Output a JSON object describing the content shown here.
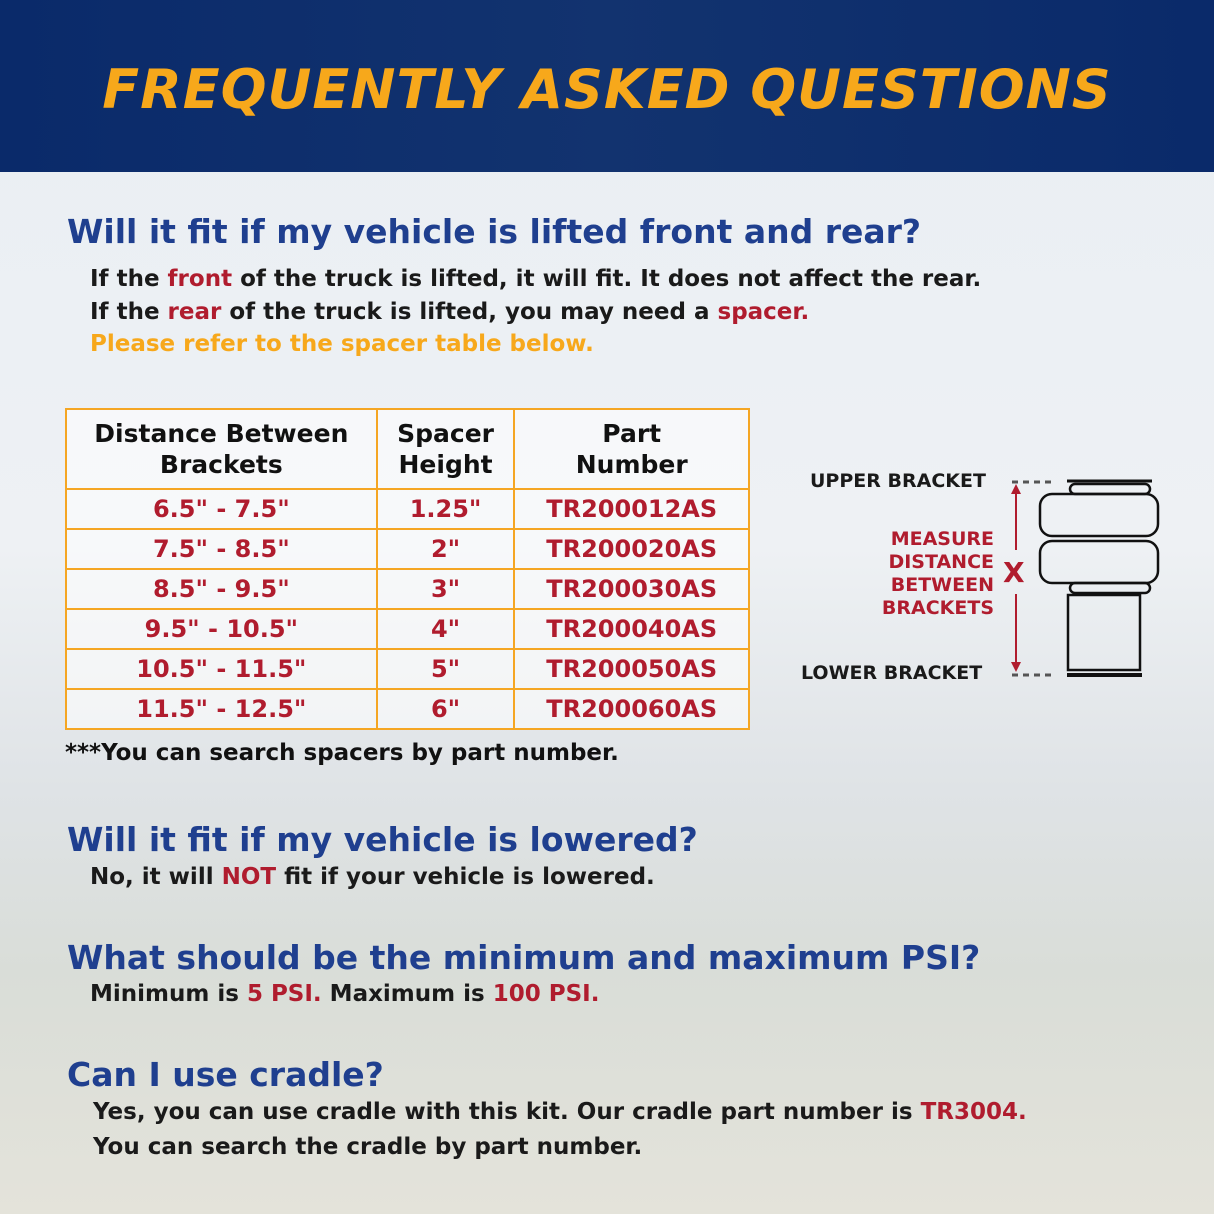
{
  "header": {
    "title": "FREQUENTLY ASKED QUESTIONS"
  },
  "faq1": {
    "question": "Will it fit if my vehicle is lifted front and rear?",
    "line1": {
      "a": "If the ",
      "b": "front",
      "c": " of the truck is lifted, it will fit. It does not affect the rear."
    },
    "line2": {
      "a": "If the ",
      "b": "rear",
      "c": " of the truck is lifted, you may need a ",
      "d": "spacer."
    },
    "line3": "Please refer to the spacer table below."
  },
  "table": {
    "headers": [
      [
        "Distance Between",
        "Brackets"
      ],
      [
        "Spacer",
        "Height"
      ],
      [
        "Part",
        "Number"
      ]
    ],
    "rows": [
      [
        "6.5\" - 7.5\"",
        "1.25\"",
        "TR200012AS"
      ],
      [
        "7.5\" - 8.5\"",
        "2\"",
        "TR200020AS"
      ],
      [
        "8.5\" - 9.5\"",
        "3\"",
        "TR200030AS"
      ],
      [
        "9.5\" - 10.5\"",
        "4\"",
        "TR200040AS"
      ],
      [
        "10.5\" - 11.5\"",
        "5\"",
        "TR200050AS"
      ],
      [
        "11.5\" - 12.5\"",
        "6\"",
        "TR200060AS"
      ]
    ],
    "note": "***You can search spacers by part number."
  },
  "diagram": {
    "upper": "UPPER BRACKET",
    "lower": "LOWER BRACKET",
    "measure": [
      "MEASURE",
      "DISTANCE",
      "BETWEEN",
      "BRACKETS"
    ],
    "x": "X"
  },
  "faq2": {
    "question": "Will it fit if my vehicle is lowered?",
    "a": "No, it will ",
    "b": "NOT",
    "c": " fit if your vehicle is lowered."
  },
  "faq3": {
    "question": "What should be the minimum and maximum PSI?",
    "a": "Minimum is ",
    "b": "5 PSI.",
    "c": " Maximum is ",
    "d": "100 PSI."
  },
  "faq4": {
    "question": "Can I use cradle?",
    "a": "Yes, you can use cradle with this kit. Our cradle part number is ",
    "b": "TR3004.",
    "line2": "You can search the cradle by part number."
  },
  "colors": {
    "navy": "#0a2a6a",
    "title": "#f7a81b",
    "heading": "#1f3f8f",
    "accent_red": "#b01c2e",
    "table_border": "#f5a623"
  }
}
